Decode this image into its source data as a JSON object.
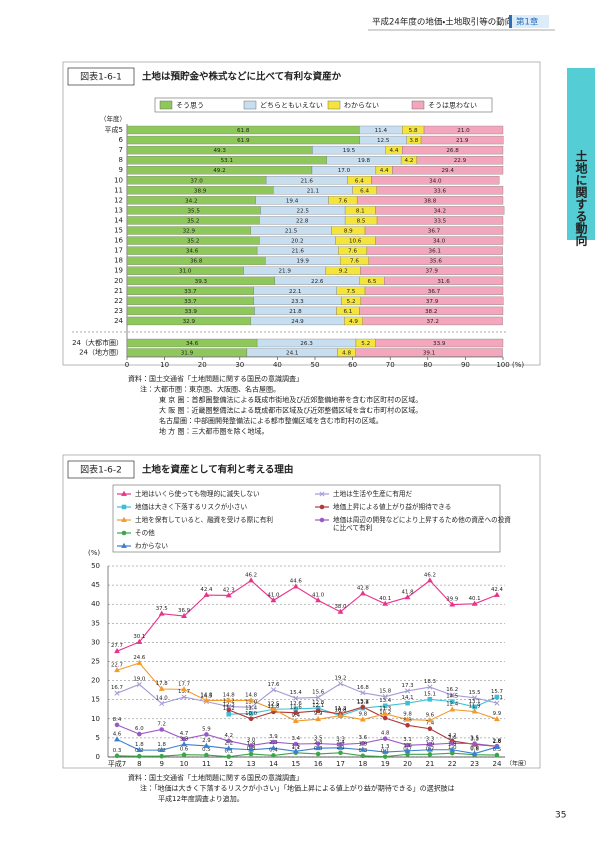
{
  "header": {
    "title": "平成24年度の地価・土地取引等の動向",
    "chapter": "第1章"
  },
  "side_tab": "土地に関する動向",
  "page_number": 35,
  "chart_data": [
    {
      "type": "bar",
      "orientation": "horizontal",
      "stacked": true,
      "figure_label": "図表1-6-1",
      "title": "土地は預貯金や株式などに比べて有利な資産か",
      "categories": [
        "平成5",
        "6",
        "7",
        "8",
        "9",
        "10",
        "11",
        "12",
        "13",
        "14",
        "15",
        "16",
        "17",
        "18",
        "19",
        "20",
        "21",
        "22",
        "23",
        "24",
        "24（大都市圏）",
        "24（地方圏）"
      ],
      "series": [
        {
          "name": "そう思う",
          "color": "#8fc85a",
          "values": [
            61.8,
            61.9,
            49.3,
            53.1,
            49.2,
            37.0,
            38.9,
            34.2,
            35.5,
            35.2,
            32.9,
            35.2,
            34.6,
            36.8,
            31.0,
            39.3,
            33.7,
            33.7,
            33.9,
            32.9,
            34.6,
            31.9
          ],
          "value_labels": [
            "61.8",
            "61.9",
            "49.3",
            "53.1",
            "49.2",
            "37.0",
            "38.9",
            "34.2",
            "35.5",
            "35.2",
            "32.9",
            "35.2",
            "34.6",
            "36.8",
            "31.0",
            "39.3",
            "33.7",
            "33.7",
            "33.9",
            "32.9",
            "34.6",
            "31.9"
          ]
        },
        {
          "name": "どちらともいえない",
          "color": "#c7def0",
          "values": [
            11.4,
            12.5,
            19.5,
            19.8,
            17.0,
            21.6,
            21.1,
            19.4,
            22.5,
            22.8,
            21.5,
            20.2,
            21.6,
            19.9,
            21.9,
            22.6,
            22.1,
            23.3,
            21.8,
            24.9,
            26.3,
            24.1
          ],
          "value_labels": [
            "11.4",
            "12.5",
            "19.5",
            "19.8",
            "17.0",
            "21.6",
            "21.1",
            "19.4",
            "22.5",
            "22.8",
            "21.5",
            "20.2",
            "21.6",
            "19.9",
            "21.9",
            "22.6",
            "22.1",
            "23.3",
            "21.8",
            "24.9",
            "26.3",
            "24.1"
          ]
        },
        {
          "name": "わからない",
          "color": "#f5e43c",
          "values": [
            5.8,
            3.8,
            4.4,
            4.2,
            4.4,
            6.4,
            6.4,
            7.6,
            8.1,
            8.5,
            8.9,
            10.6,
            7.6,
            7.6,
            9.2,
            6.5,
            7.5,
            5.2,
            6.1,
            4.9,
            5.2,
            4.8
          ],
          "value_labels": [
            "5.8",
            "3.8",
            "4.4",
            "4.2",
            "4.4",
            "6.4",
            "6.4",
            "7.6",
            "8.1",
            "8.5",
            "8.9",
            "10.6",
            "7.6",
            "7.6",
            "9.2",
            "6.5",
            "7.5",
            "5.2",
            "6.1",
            "4.9",
            "5.2",
            "4.8"
          ]
        },
        {
          "name": "そうは思わない",
          "color": "#f4a6bd",
          "values": [
            21.0,
            21.9,
            26.8,
            22.9,
            29.4,
            34.0,
            33.6,
            38.8,
            34.2,
            33.5,
            36.7,
            34.0,
            36.1,
            35.6,
            37.9,
            31.6,
            36.7,
            37.9,
            38.2,
            37.2,
            33.9,
            39.1
          ],
          "value_labels": [
            "21.0",
            "21.9",
            "26.8",
            "22.9",
            "29.4",
            "34.0",
            "33.6",
            "38.8",
            "34.2",
            "33.5",
            "36.7",
            "34.0",
            "36.1",
            "35.6",
            "37.9",
            "31.6",
            "36.7",
            "37.9",
            "38.2",
            "37.2",
            "33.9",
            "39.1"
          ]
        }
      ],
      "xlim": [
        0,
        100
      ],
      "xticks": [
        0,
        10,
        20,
        30,
        40,
        50,
        60,
        70,
        80,
        90,
        100
      ],
      "x_label": "(%)",
      "y_label": "（年度）",
      "notes": [
        "資料：国土交通省「土地問題に関する国民の意識調査」",
        "注：大都市圏：東京圏、大阪圏、名古屋圏。",
        "東 京 圏：首都圏整備法による既成市街地及び近郊整備地帯を含む市区町村の区域。",
        "大 阪 圏：近畿圏整備法による既成都市区域及び近郊整備区域を含む市町村の区域。",
        "名古屋圏：中部圏開発整備法による都市整備区域を含む市町村の区域。",
        "地 方 圏：三大都市圏を除く地域。"
      ]
    },
    {
      "type": "line",
      "figure_label": "図表1-6-2",
      "title": "土地を資産として有利と考える理由",
      "categories": [
        "平成7",
        "8",
        "9",
        "10",
        "11",
        "12",
        "13",
        "14",
        "15",
        "16",
        "17",
        "18",
        "19",
        "20",
        "21",
        "22",
        "23",
        "24"
      ],
      "series": [
        {
          "name": "土地はいくら使っても物理的に滅失しない",
          "color": "#e8328c",
          "marker": "triangle",
          "values": [
            27.7,
            30.1,
            37.5,
            36.9,
            42.4,
            42.3,
            46.2,
            41.0,
            44.6,
            41.0,
            38.0,
            42.8,
            40.1,
            41.8,
            46.2,
            39.9,
            40.1,
            42.4
          ],
          "value_labels": [
            "27.7",
            "30.1",
            "37.5",
            "36.9",
            "42.4",
            "42.3",
            "46.2",
            "41.0",
            "44.6",
            "41.0",
            "38.0",
            "42.8",
            "40.1",
            "41.8",
            "46.2",
            "39.9",
            "40.1",
            "42.4"
          ]
        },
        {
          "name": "土地は生活や生産に有用だ",
          "color": "#a79ad6",
          "marker": "cross",
          "values": [
            16.7,
            19.0,
            14.0,
            15.7,
            14.5,
            13.2,
            13.0,
            17.6,
            15.4,
            15.6,
            19.2,
            16.8,
            15.8,
            17.3,
            18.3,
            16.2,
            15.5,
            14.1
          ],
          "value_labels": [
            "16.7",
            "19.0",
            "14.0",
            "15.7",
            "14.5",
            "13.2",
            "13.0",
            "17.6",
            "15.4",
            "15.6",
            "19.2",
            "16.8",
            "15.8",
            "17.3",
            "18.3",
            "16.2",
            "15.5",
            "14.1"
          ]
        },
        {
          "name": "地価は大きく下落するリスクが小さい",
          "color": "#3cbfd6",
          "marker": "square",
          "values": [
            null,
            null,
            null,
            null,
            null,
            11.2,
            11.4,
            12.5,
            12.6,
            12.8,
            10.8,
            12.8,
            13.4,
            14.1,
            15.1,
            14.5,
            13.1,
            15.7
          ],
          "value_labels": [
            null,
            null,
            null,
            null,
            null,
            "11.2",
            "11.4",
            "12.5",
            "12.6",
            "12.8",
            "10.8",
            "12.8",
            "13.4",
            "14.1",
            "15.1",
            "14.5",
            "13.1",
            "15.7"
          ]
        },
        {
          "name": "地価上昇による値上がり益が期待できる",
          "color": "#b03a3a",
          "marker": "circle",
          "values": [
            null,
            null,
            null,
            null,
            null,
            12.3,
            10.0,
            11.8,
            11.6,
            12.1,
            11.3,
            13.1,
            10.2,
            8.3,
            7.4,
            4.2,
            3.3,
            2.8
          ],
          "value_labels": [
            null,
            null,
            null,
            null,
            null,
            "12.3",
            "10.0",
            "11.8",
            "11.6",
            "12.1",
            "11.3",
            "13.1",
            "10.2",
            "8.3",
            "7.4",
            "4.2",
            "3.3",
            "2.8"
          ]
        },
        {
          "name": "土地を保有していると、融資を受ける際に有利",
          "color": "#f39a2c",
          "marker": "triangle",
          "values": [
            22.7,
            24.6,
            17.8,
            17.7,
            14.8,
            14.8,
            14.8,
            12.5,
            9.4,
            9.9,
            10.8,
            9.8,
            11.3,
            9.8,
            9.6,
            12.4,
            11.9,
            9.9
          ],
          "value_labels": [
            "22.7",
            "24.6",
            "17.8",
            "17.7",
            "14.8",
            "14.8",
            "14.8",
            "12.5",
            "9.4",
            "9.9",
            "10.8",
            "9.8",
            "11.3",
            "9.8",
            "9.6",
            "12.4",
            "11.9",
            "9.9"
          ]
        },
        {
          "name": "地価は周辺の開発などにより上昇するため他の資産への投資に比べて有利",
          "color": "#9b59c6",
          "marker": "circle",
          "values": [
            8.4,
            6.0,
            7.2,
            4.7,
            5.9,
            4.2,
            3.0,
            3.9,
            3.4,
            3.5,
            3.3,
            3.6,
            4.8,
            3.1,
            3.3,
            3.6,
            3.5,
            2.8
          ],
          "value_labels": [
            "8.4",
            "6.0",
            "7.2",
            "4.7",
            "5.9",
            "4.2",
            "3.0",
            "3.9",
            "3.4",
            "3.5",
            "3.3",
            "3.6",
            "4.8",
            "3.1",
            "3.3",
            "3.6",
            "3.5",
            "2.8"
          ]
        },
        {
          "name": "その他",
          "color": "#3aa64a",
          "marker": "circle",
          "values": [
            0.3,
            0.2,
            0.2,
            0.6,
            0.5,
            0.1,
            0.8,
            0.4,
            1.1,
            0.8,
            1.1,
            0.3,
            0.1,
            0.7,
            0.7,
            1.0,
            0.6,
            0.5
          ],
          "value_labels": [
            "0.3",
            "0.2",
            "0.2",
            "0.6",
            "0.5",
            "0.1",
            "0.8",
            "0.4",
            "1.1",
            "0.8",
            "1.1",
            "0.3",
            "0.1",
            "0.7",
            "0.7",
            "1.0",
            "0.6",
            "0.5"
          ]
        },
        {
          "name": "わからない",
          "color": "#3a7fd0",
          "marker": "triangle",
          "values": [
            4.6,
            1.8,
            1.8,
            3.3,
            2.9,
            2.2,
            1.9,
            2.3,
            1.5,
            2.3,
            2.4,
            1.9,
            1.3,
            1.6,
            1.9,
            1.9,
            0.9,
            2.6
          ],
          "value_labels": [
            "4.6",
            "1.8",
            "1.8",
            "3.3",
            "2.9",
            "2.2",
            "1.9",
            "2.3",
            "1.5",
            "2.3",
            "2.4",
            "1.9",
            "1.3",
            "1.6",
            "1.9",
            "1.9",
            "0.9",
            "2.6"
          ]
        }
      ],
      "ylim": [
        0,
        50
      ],
      "yticks": [
        0,
        5,
        10,
        15,
        20,
        25,
        30,
        35,
        40,
        45,
        50
      ],
      "grid": true,
      "y_label": "(%)",
      "x_label": "（年度）",
      "notes": [
        "資料：国土交通省「土地問題に関する国民の意識調査」",
        "注：「地価は大きく下落するリスクが小さい」「地価上昇による値上がり益が期待できる」の選択肢は",
        "平成12年度調査より追加。"
      ]
    }
  ]
}
